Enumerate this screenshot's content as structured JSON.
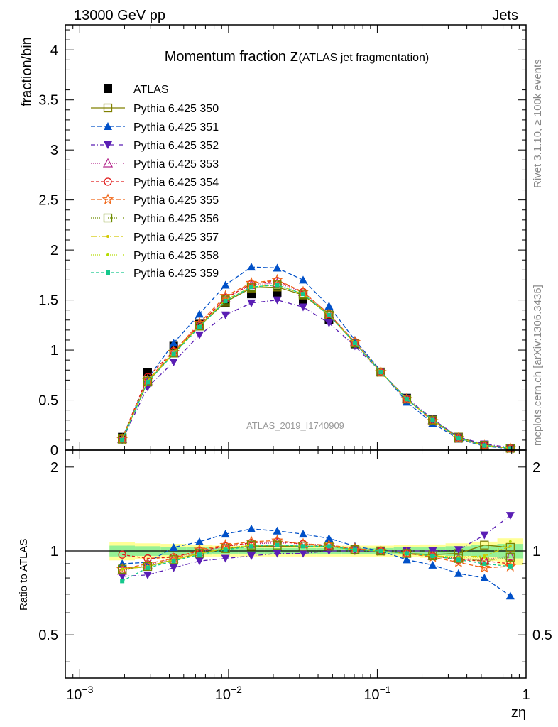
{
  "header": {
    "left": "13000 GeV pp",
    "right": "Jets"
  },
  "main_title": {
    "main": "Momentum fraction ",
    "z": "z",
    "sub": "(ATLAS jet fragmentation)"
  },
  "watermark": "ATLAS_2019_I1740909",
  "side_text_1": "Rivet 3.1.10, ≥ 100k events",
  "side_text_2": "mcplots.cern.ch [arXiv:1306.3436]",
  "colors": {
    "atlas": "#000000",
    "p350": "#808000",
    "p351": "#0050c8",
    "p352": "#5a1eb4",
    "p353": "#b4288c",
    "p354": "#e01a1a",
    "p355": "#f06414",
    "p356": "#6e8c00",
    "p357": "#d2c800",
    "p358": "#b4dc00",
    "p359": "#14c88c",
    "band_yellow": "#ffff96",
    "band_green": "#96f096"
  },
  "chart_data": [
    {
      "type": "scatter",
      "x_scale": "log",
      "xlim": [
        0.0008,
        1
      ],
      "ylim": [
        0,
        4.25
      ],
      "ylabel": "fraction/bin",
      "xlabel": "zη",
      "x_tick_labels": [
        {
          "base": "10",
          "exp": "−3"
        },
        {
          "base": "10",
          "exp": "−2"
        },
        {
          "base": "10",
          "exp": "−1"
        },
        {
          "base": "1",
          "exp": ""
        }
      ],
      "y_tick_labels": [
        "0",
        "0.5",
        "1",
        "1.5",
        "2",
        "2.5",
        "3",
        "3.5",
        "4"
      ],
      "x": [
        0.00193,
        0.00286,
        0.00428,
        0.00638,
        0.00954,
        0.01424,
        0.02125,
        0.03174,
        0.04737,
        0.07074,
        0.1056,
        0.1577,
        0.2355,
        0.3516,
        0.5249,
        0.7838
      ],
      "series": [
        {
          "name": "ATLAS",
          "key": "atlas",
          "marker": "filled-square",
          "dash": "none",
          "values": [
            0.13,
            0.78,
            1.04,
            1.26,
            1.47,
            1.56,
            1.57,
            1.49,
            1.3,
            1.06,
            0.78,
            0.52,
            0.31,
            0.13,
            0.05,
            0.02
          ]
        },
        {
          "name": "Pythia 6.425 350",
          "key": "p350",
          "marker": "open-square",
          "dash": "solid",
          "values": [
            0.11,
            0.68,
            0.97,
            1.24,
            1.48,
            1.62,
            1.63,
            1.55,
            1.35,
            1.07,
            0.78,
            0.51,
            0.3,
            0.13,
            0.05,
            0.02
          ]
        },
        {
          "name": "Pythia 6.425 351",
          "key": "p351",
          "marker": "filled-triangle-up",
          "dash": "6,3",
          "values": [
            0.12,
            0.71,
            1.07,
            1.36,
            1.65,
            1.83,
            1.82,
            1.7,
            1.44,
            1.1,
            0.79,
            0.48,
            0.27,
            0.11,
            0.04,
            0.014
          ]
        },
        {
          "name": "Pythia 6.425 352",
          "key": "p352",
          "marker": "filled-triangle-down",
          "dash": "6,3,1,3",
          "values": [
            0.1,
            0.63,
            0.88,
            1.15,
            1.35,
            1.47,
            1.5,
            1.43,
            1.27,
            1.04,
            0.78,
            0.52,
            0.31,
            0.13,
            0.06,
            0.027
          ]
        },
        {
          "name": "Pythia 6.425 353",
          "key": "p353",
          "marker": "open-triangle-up",
          "dash": "1,2",
          "values": [
            0.11,
            0.69,
            0.98,
            1.25,
            1.52,
            1.65,
            1.67,
            1.58,
            1.36,
            1.08,
            0.78,
            0.51,
            0.3,
            0.12,
            0.048,
            0.019
          ]
        },
        {
          "name": "Pythia 6.425 354",
          "key": "p354",
          "marker": "open-circle",
          "dash": "4,3",
          "values": [
            0.12,
            0.73,
            0.99,
            1.25,
            1.52,
            1.66,
            1.69,
            1.58,
            1.36,
            1.08,
            0.78,
            0.51,
            0.3,
            0.12,
            0.046,
            0.018
          ]
        },
        {
          "name": "Pythia 6.425 355",
          "key": "p355",
          "marker": "open-star",
          "dash": "6,3",
          "values": [
            0.11,
            0.7,
            0.98,
            1.27,
            1.54,
            1.67,
            1.7,
            1.58,
            1.36,
            1.08,
            0.78,
            0.51,
            0.29,
            0.12,
            0.044,
            0.018
          ]
        },
        {
          "name": "Pythia 6.425 356",
          "key": "p356",
          "marker": "open-square",
          "dash": "1,2",
          "values": [
            0.11,
            0.69,
            0.97,
            1.24,
            1.5,
            1.63,
            1.65,
            1.56,
            1.35,
            1.07,
            0.78,
            0.51,
            0.3,
            0.12,
            0.047,
            0.019
          ]
        },
        {
          "name": "Pythia 6.425 357",
          "key": "p357",
          "marker": "small-dot",
          "dash": "8,3,2,3",
          "values": [
            0.11,
            0.69,
            0.97,
            1.24,
            1.5,
            1.63,
            1.65,
            1.56,
            1.35,
            1.07,
            0.78,
            0.51,
            0.3,
            0.12,
            0.047,
            0.02
          ]
        },
        {
          "name": "Pythia 6.425 358",
          "key": "p358",
          "marker": "small-dot",
          "dash": "1,2",
          "values": [
            0.11,
            0.69,
            0.97,
            1.24,
            1.5,
            1.63,
            1.65,
            1.56,
            1.35,
            1.07,
            0.78,
            0.51,
            0.3,
            0.12,
            0.047,
            0.02
          ]
        },
        {
          "name": "Pythia 6.425 359",
          "key": "p359",
          "marker": "filled-square-small",
          "dash": "4,3",
          "values": [
            0.1,
            0.68,
            0.96,
            1.23,
            1.49,
            1.63,
            1.65,
            1.56,
            1.35,
            1.07,
            0.78,
            0.51,
            0.3,
            0.12,
            0.046,
            0.018
          ]
        }
      ]
    },
    {
      "type": "scatter",
      "x_scale": "log",
      "xlim": [
        0.0008,
        1
      ],
      "ylim": [
        0.35,
        2.3
      ],
      "ylabel": "Ratio to ATLAS",
      "xlabel": "zη",
      "y_tick_labels": [
        "0.5",
        "1",
        "2"
      ],
      "y_ticks": [
        0.5,
        1,
        2
      ],
      "reference_line": 1,
      "x": [
        0.00193,
        0.00286,
        0.00428,
        0.00638,
        0.00954,
        0.01424,
        0.02125,
        0.03174,
        0.04737,
        0.07074,
        0.1056,
        0.1577,
        0.2355,
        0.3516,
        0.5249,
        0.7838
      ],
      "band_yellow_halfwidth": [
        0.075,
        0.065,
        0.06,
        0.05,
        0.045,
        0.045,
        0.045,
        0.045,
        0.045,
        0.045,
        0.045,
        0.05,
        0.055,
        0.065,
        0.08,
        0.11
      ],
      "band_green_halfwidth": [
        0.045,
        0.04,
        0.035,
        0.03,
        0.025,
        0.025,
        0.025,
        0.025,
        0.025,
        0.025,
        0.025,
        0.03,
        0.035,
        0.04,
        0.05,
        0.06
      ],
      "series": [
        {
          "key": "p350",
          "values": [
            0.86,
            0.88,
            0.93,
            0.98,
            1.02,
            1.04,
            1.04,
            1.04,
            1.04,
            1.01,
            1.0,
            0.98,
            0.97,
            0.98,
            1.05,
            1.03
          ]
        },
        {
          "key": "p351",
          "values": [
            0.9,
            0.91,
            1.03,
            1.08,
            1.15,
            1.2,
            1.18,
            1.15,
            1.11,
            1.04,
            1.0,
            0.93,
            0.89,
            0.83,
            0.8,
            0.69
          ]
        },
        {
          "key": "p352",
          "values": [
            0.81,
            0.82,
            0.87,
            0.92,
            0.94,
            0.96,
            0.98,
            0.98,
            1.0,
            1.0,
            1.0,
            1.0,
            1.0,
            1.01,
            1.14,
            1.34
          ]
        },
        {
          "key": "p353",
          "values": [
            0.85,
            0.89,
            0.94,
            0.99,
            1.04,
            1.06,
            1.07,
            1.06,
            1.05,
            1.02,
            1.0,
            0.98,
            0.96,
            0.94,
            0.93,
            0.96
          ]
        },
        {
          "key": "p354",
          "values": [
            0.97,
            0.94,
            0.95,
            1.0,
            1.04,
            1.07,
            1.08,
            1.06,
            1.04,
            1.02,
            1.0,
            0.98,
            0.96,
            0.93,
            0.92,
            0.9
          ]
        },
        {
          "key": "p355",
          "values": [
            0.86,
            0.9,
            0.94,
            1.01,
            1.05,
            1.08,
            1.09,
            1.06,
            1.05,
            1.02,
            1.0,
            0.98,
            0.95,
            0.91,
            0.87,
            0.88
          ]
        },
        {
          "key": "p356",
          "values": [
            0.86,
            0.88,
            0.93,
            0.98,
            1.02,
            1.05,
            1.05,
            1.04,
            1.04,
            1.01,
            1.0,
            0.98,
            0.96,
            0.94,
            0.92,
            0.95
          ]
        },
        {
          "key": "p357",
          "values": [
            0.86,
            0.88,
            0.93,
            0.98,
            1.02,
            1.05,
            1.05,
            1.04,
            1.04,
            1.01,
            1.0,
            0.98,
            0.96,
            0.95,
            0.96,
            1.04
          ]
        },
        {
          "key": "p358",
          "values": [
            0.86,
            0.88,
            0.93,
            0.98,
            1.02,
            1.05,
            1.05,
            1.04,
            1.04,
            1.01,
            1.0,
            0.98,
            0.96,
            0.95,
            0.95,
            1.08
          ]
        },
        {
          "key": "p359",
          "values": [
            0.78,
            0.87,
            0.92,
            0.97,
            1.01,
            1.04,
            1.05,
            1.04,
            1.04,
            1.01,
            1.0,
            0.98,
            0.96,
            0.93,
            0.9,
            0.88
          ]
        }
      ]
    }
  ]
}
